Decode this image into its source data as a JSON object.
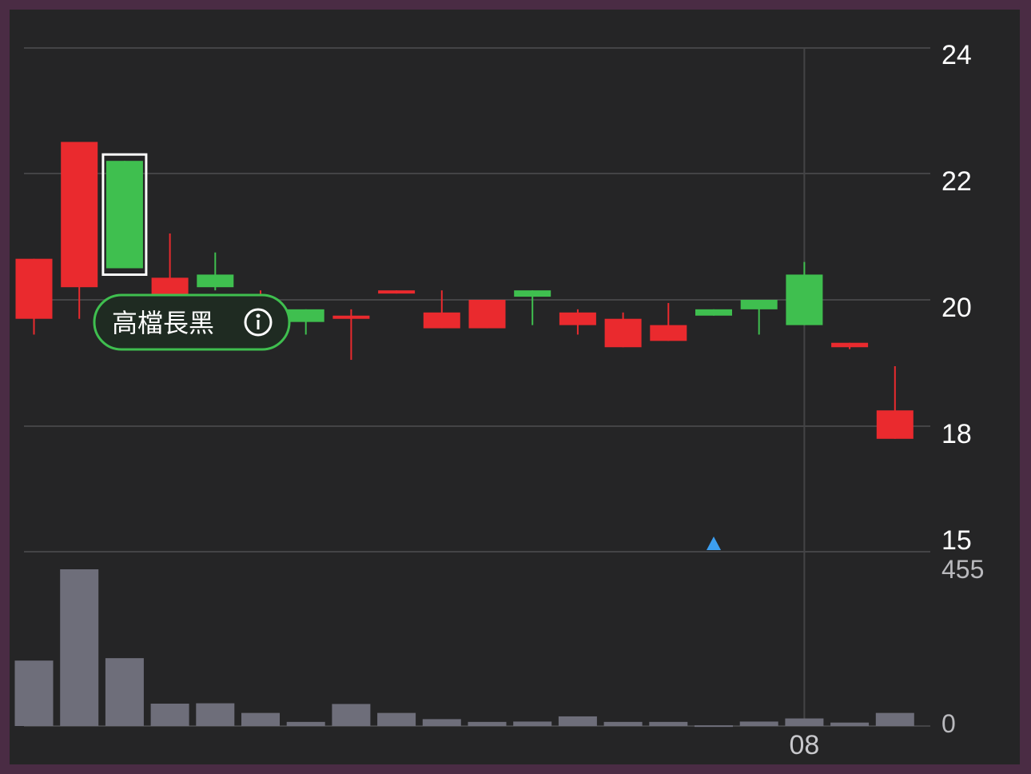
{
  "chart_data": {
    "type": "candlestick",
    "price_axis": {
      "ticks": [
        24,
        22,
        20,
        18,
        15
      ],
      "range": [
        15,
        24
      ]
    },
    "volume_axis": {
      "ticks": [
        "455",
        "0"
      ],
      "max": 455,
      "min": 0
    },
    "x_tick_label": "08",
    "x_tick_index": 17,
    "highlighted_index": 2,
    "pattern_tag": "高檔長黑",
    "marker_index": 15,
    "colors": {
      "up": "#ea2a2e",
      "down": "#3fbf4f",
      "volume": "#6e6e7a",
      "grid": "#444446",
      "marker": "#3d9ff0",
      "pill_border": "#3fbf4f",
      "pill_bg": "#1f2b22"
    },
    "candles": [
      {
        "open": 19.7,
        "close": 20.65,
        "high": 20.65,
        "low": 19.45,
        "volume": 190
      },
      {
        "open": 20.2,
        "close": 22.5,
        "high": 22.5,
        "low": 19.7,
        "volume": 455
      },
      {
        "open": 22.2,
        "close": 20.5,
        "high": 22.2,
        "low": 20.5,
        "volume": 197
      },
      {
        "open": 19.75,
        "close": 20.35,
        "high": 21.05,
        "low": 19.75,
        "volume": 65
      },
      {
        "open": 20.4,
        "close": 20.2,
        "high": 20.75,
        "low": 20.15,
        "volume": 66
      },
      {
        "open": 19.8,
        "close": 20.0,
        "high": 20.15,
        "low": 19.75,
        "volume": 38
      },
      {
        "open": 19.85,
        "close": 19.65,
        "high": 19.85,
        "low": 19.45,
        "volume": 12
      },
      {
        "open": 19.75,
        "close": 19.75,
        "high": 19.85,
        "low": 19.05,
        "volume": 64
      },
      {
        "open": 20.15,
        "close": 20.15,
        "high": 20.15,
        "low": 20.1,
        "volume": 38
      },
      {
        "open": 19.55,
        "close": 19.8,
        "high": 20.15,
        "low": 19.55,
        "volume": 20
      },
      {
        "open": 19.55,
        "close": 20.0,
        "high": 20.0,
        "low": 19.55,
        "volume": 12
      },
      {
        "open": 20.15,
        "close": 20.05,
        "high": 20.15,
        "low": 19.6,
        "volume": 13
      },
      {
        "open": 19.6,
        "close": 19.8,
        "high": 19.85,
        "low": 19.45,
        "volume": 28
      },
      {
        "open": 19.25,
        "close": 19.7,
        "high": 19.8,
        "low": 19.25,
        "volume": 12
      },
      {
        "open": 19.35,
        "close": 19.6,
        "high": 19.95,
        "low": 19.35,
        "volume": 12
      },
      {
        "open": 19.85,
        "close": 19.75,
        "high": 19.85,
        "low": 19.75,
        "volume": 2
      },
      {
        "open": 20.0,
        "close": 19.85,
        "high": 20.0,
        "low": 19.45,
        "volume": 13
      },
      {
        "open": 20.4,
        "close": 19.6,
        "high": 20.6,
        "low": 19.6,
        "volume": 22
      },
      {
        "open": 19.25,
        "close": 19.32,
        "high": 19.32,
        "low": 19.22,
        "volume": 10
      },
      {
        "open": 17.8,
        "close": 18.25,
        "high": 18.95,
        "low": 17.8,
        "volume": 38
      }
    ]
  }
}
